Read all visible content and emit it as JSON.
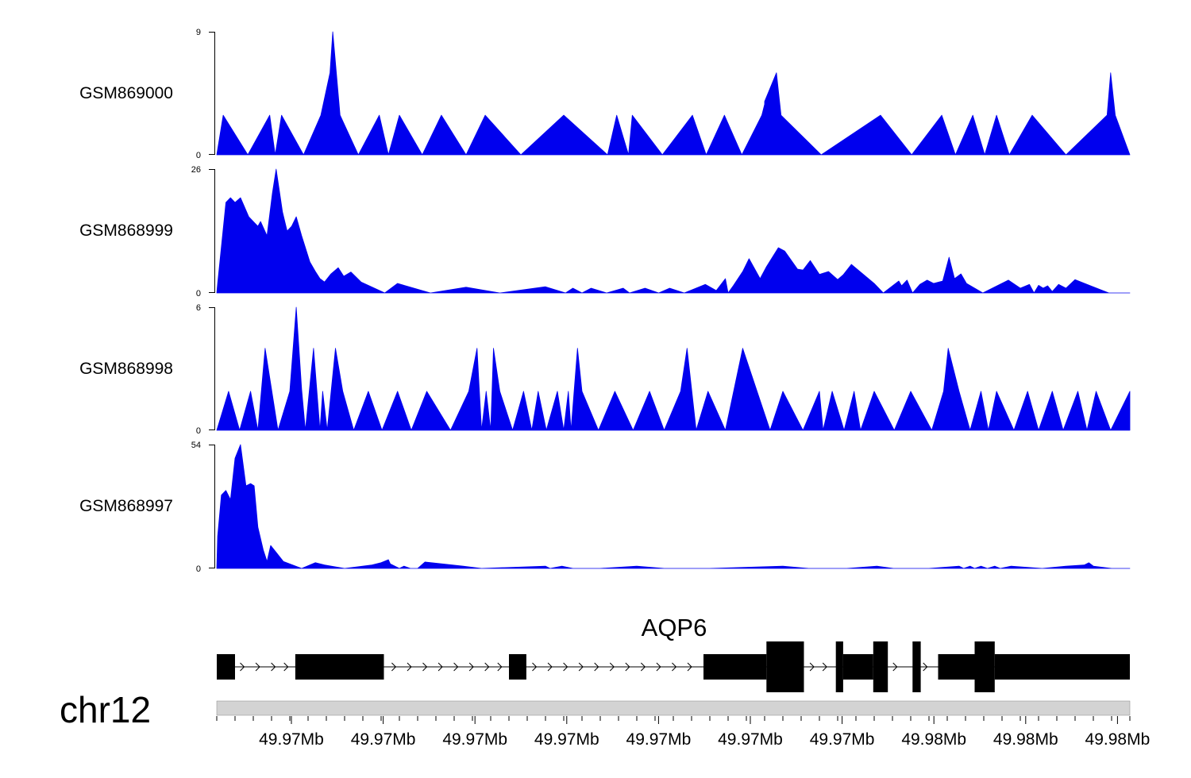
{
  "chart_data": {
    "type": "area",
    "chromosome": "chr12",
    "gene": "AQP6",
    "series_color": "#0000ee",
    "tracks": [
      {
        "name": "GSM869000",
        "ymax": 9,
        "ymin": 0,
        "points": [
          [
            0,
            0
          ],
          [
            0.007,
            2.9
          ],
          [
            0.034,
            0
          ],
          [
            0.058,
            2.9
          ],
          [
            0.064,
            0
          ],
          [
            0.071,
            2.9
          ],
          [
            0.095,
            0
          ],
          [
            0.114,
            2.9
          ],
          [
            0.124,
            6
          ],
          [
            0.127,
            9
          ],
          [
            0.135,
            2.9
          ],
          [
            0.155,
            0
          ],
          [
            0.178,
            2.9
          ],
          [
            0.188,
            0
          ],
          [
            0.2,
            2.9
          ],
          [
            0.225,
            0
          ],
          [
            0.246,
            2.9
          ],
          [
            0.273,
            0
          ],
          [
            0.294,
            2.9
          ],
          [
            0.333,
            0
          ],
          [
            0.38,
            2.9
          ],
          [
            0.428,
            0
          ],
          [
            0.438,
            2.9
          ],
          [
            0.451,
            0
          ],
          [
            0.455,
            2.9
          ],
          [
            0.488,
            0
          ],
          [
            0.521,
            2.9
          ],
          [
            0.536,
            0
          ],
          [
            0.556,
            2.9
          ],
          [
            0.575,
            0
          ],
          [
            0.597,
            2.9
          ],
          [
            0.6,
            3.7
          ],
          [
            0.6,
            3.9
          ],
          [
            0.613,
            6
          ],
          [
            0.618,
            2.9
          ],
          [
            0.662,
            0
          ],
          [
            0.727,
            2.9
          ],
          [
            0.761,
            0
          ],
          [
            0.794,
            2.9
          ],
          [
            0.809,
            0
          ],
          [
            0.828,
            2.9
          ],
          [
            0.841,
            0
          ],
          [
            0.854,
            2.9
          ],
          [
            0.868,
            0
          ],
          [
            0.893,
            2.9
          ],
          [
            0.93,
            0
          ],
          [
            0.975,
            2.9
          ],
          [
            0.979,
            6
          ],
          [
            0.984,
            2.9
          ],
          [
            1.0,
            0
          ]
        ]
      },
      {
        "name": "GSM868999",
        "ymax": 26,
        "ymin": 0,
        "points": [
          [
            0,
            0
          ],
          [
            0.001,
            2
          ],
          [
            0.01,
            19
          ],
          [
            0.015,
            20
          ],
          [
            0.02,
            19
          ],
          [
            0.026,
            20
          ],
          [
            0.035,
            16
          ],
          [
            0.04,
            15
          ],
          [
            0.045,
            14
          ],
          [
            0.048,
            15
          ],
          [
            0.055,
            12
          ],
          [
            0.061,
            21
          ],
          [
            0.065,
            26
          ],
          [
            0.072,
            17
          ],
          [
            0.077,
            13
          ],
          [
            0.082,
            14
          ],
          [
            0.087,
            16
          ],
          [
            0.093,
            12
          ],
          [
            0.102,
            6.5
          ],
          [
            0.108,
            4.5
          ],
          [
            0.113,
            3
          ],
          [
            0.118,
            2.3
          ],
          [
            0.125,
            4
          ],
          [
            0.133,
            5.3
          ],
          [
            0.139,
            3.5
          ],
          [
            0.147,
            4.4
          ],
          [
            0.158,
            2.3
          ],
          [
            0.184,
            0
          ],
          [
            0.198,
            2
          ],
          [
            0.234,
            0
          ],
          [
            0.273,
            1.2
          ],
          [
            0.31,
            0
          ],
          [
            0.36,
            1.3
          ],
          [
            0.382,
            0
          ],
          [
            0.39,
            1
          ],
          [
            0.4,
            0
          ],
          [
            0.41,
            1
          ],
          [
            0.427,
            0
          ],
          [
            0.445,
            1
          ],
          [
            0.452,
            0
          ],
          [
            0.469,
            1
          ],
          [
            0.484,
            0
          ],
          [
            0.496,
            1
          ],
          [
            0.512,
            0
          ],
          [
            0.535,
            1.8
          ],
          [
            0.547,
            0.5
          ],
          [
            0.557,
            3
          ],
          [
            0.56,
            0
          ],
          [
            0.566,
            1.6
          ],
          [
            0.576,
            4.5
          ],
          [
            0.583,
            7.2
          ],
          [
            0.595,
            3
          ],
          [
            0.602,
            5.5
          ],
          [
            0.615,
            9.5
          ],
          [
            0.622,
            8.8
          ],
          [
            0.636,
            5
          ],
          [
            0.642,
            4.8
          ],
          [
            0.65,
            6.8
          ],
          [
            0.66,
            3.9
          ],
          [
            0.67,
            4.5
          ],
          [
            0.68,
            2.8
          ],
          [
            0.686,
            3.8
          ],
          [
            0.695,
            6
          ],
          [
            0.72,
            2
          ],
          [
            0.73,
            0
          ],
          [
            0.747,
            2.5
          ],
          [
            0.75,
            1.5
          ],
          [
            0.756,
            2.7
          ],
          [
            0.762,
            0
          ],
          [
            0.77,
            1.8
          ],
          [
            0.778,
            2.7
          ],
          [
            0.785,
            2
          ],
          [
            0.795,
            2.5
          ],
          [
            0.802,
            7.5
          ],
          [
            0.808,
            3
          ],
          [
            0.815,
            4
          ],
          [
            0.821,
            2
          ],
          [
            0.839,
            0
          ],
          [
            0.867,
            2.7
          ],
          [
            0.88,
            1
          ],
          [
            0.89,
            1.8
          ],
          [
            0.895,
            0
          ],
          [
            0.9,
            1.6
          ],
          [
            0.905,
            1
          ],
          [
            0.91,
            1.5
          ],
          [
            0.915,
            0.3
          ],
          [
            0.922,
            1.8
          ],
          [
            0.93,
            1
          ],
          [
            0.94,
            2.8
          ],
          [
            0.957,
            1.5
          ],
          [
            0.977,
            0
          ],
          [
            1.0,
            0
          ]
        ]
      },
      {
        "name": "GSM868998",
        "ymax": 6,
        "ymin": 0,
        "points": [
          [
            0,
            0
          ],
          [
            0.013,
            1.9
          ],
          [
            0.025,
            0
          ],
          [
            0.037,
            1.9
          ],
          [
            0.045,
            0
          ],
          [
            0.053,
            4
          ],
          [
            0.067,
            0
          ],
          [
            0.08,
            1.9
          ],
          [
            0.087,
            6
          ],
          [
            0.093,
            2
          ],
          [
            0.097,
            0
          ],
          [
            0.106,
            4
          ],
          [
            0.113,
            0
          ],
          [
            0.116,
            1.9
          ],
          [
            0.121,
            0
          ],
          [
            0.13,
            4
          ],
          [
            0.138,
            1.9
          ],
          [
            0.15,
            0
          ],
          [
            0.166,
            1.9
          ],
          [
            0.181,
            0
          ],
          [
            0.198,
            1.9
          ],
          [
            0.213,
            0
          ],
          [
            0.23,
            1.9
          ],
          [
            0.256,
            0
          ],
          [
            0.276,
            1.9
          ],
          [
            0.285,
            4
          ],
          [
            0.29,
            0
          ],
          [
            0.295,
            1.9
          ],
          [
            0.3,
            0
          ],
          [
            0.303,
            4
          ],
          [
            0.31,
            1.9
          ],
          [
            0.324,
            0
          ],
          [
            0.336,
            1.9
          ],
          [
            0.345,
            0
          ],
          [
            0.352,
            1.9
          ],
          [
            0.361,
            0
          ],
          [
            0.373,
            1.9
          ],
          [
            0.38,
            0
          ],
          [
            0.385,
            1.9
          ],
          [
            0.388,
            0
          ],
          [
            0.395,
            4
          ],
          [
            0.4,
            1.9
          ],
          [
            0.418,
            0
          ],
          [
            0.436,
            1.9
          ],
          [
            0.456,
            0
          ],
          [
            0.474,
            1.9
          ],
          [
            0.49,
            0
          ],
          [
            0.508,
            1.9
          ],
          [
            0.515,
            4
          ],
          [
            0.525,
            0
          ],
          [
            0.538,
            1.9
          ],
          [
            0.557,
            0
          ],
          [
            0.576,
            4
          ],
          [
            0.606,
            0
          ],
          [
            0.62,
            1.9
          ],
          [
            0.642,
            0
          ],
          [
            0.66,
            1.9
          ],
          [
            0.664,
            0
          ],
          [
            0.674,
            1.9
          ],
          [
            0.687,
            0
          ],
          [
            0.698,
            1.9
          ],
          [
            0.705,
            0
          ],
          [
            0.72,
            1.9
          ],
          [
            0.742,
            0
          ],
          [
            0.76,
            1.9
          ],
          [
            0.783,
            0
          ],
          [
            0.796,
            1.9
          ],
          [
            0.801,
            4
          ],
          [
            0.813,
            1.9
          ],
          [
            0.825,
            0
          ],
          [
            0.837,
            1.9
          ],
          [
            0.845,
            0
          ],
          [
            0.854,
            1.9
          ],
          [
            0.873,
            0
          ],
          [
            0.888,
            1.9
          ],
          [
            0.9,
            0
          ],
          [
            0.915,
            1.9
          ],
          [
            0.927,
            0
          ],
          [
            0.943,
            1.9
          ],
          [
            0.953,
            0
          ],
          [
            0.963,
            1.9
          ],
          [
            0.979,
            0
          ],
          [
            1.0,
            1.9
          ],
          [
            1.0,
            0
          ]
        ]
      },
      {
        "name": "GSM868997",
        "ymax": 54,
        "ymin": 0,
        "points": [
          [
            0,
            0
          ],
          [
            0.001,
            14
          ],
          [
            0.005,
            32
          ],
          [
            0.01,
            34
          ],
          [
            0.015,
            30
          ],
          [
            0.02,
            48
          ],
          [
            0.026,
            54
          ],
          [
            0.032,
            36
          ],
          [
            0.037,
            37
          ],
          [
            0.041,
            36
          ],
          [
            0.045,
            18
          ],
          [
            0.051,
            8
          ],
          [
            0.055,
            3
          ],
          [
            0.059,
            10
          ],
          [
            0.065,
            7
          ],
          [
            0.073,
            3
          ],
          [
            0.093,
            0
          ],
          [
            0.108,
            2.5
          ],
          [
            0.118,
            1.5
          ],
          [
            0.14,
            0
          ],
          [
            0.17,
            1.5
          ],
          [
            0.18,
            2.5
          ],
          [
            0.188,
            3.8
          ],
          [
            0.19,
            2
          ],
          [
            0.2,
            0
          ],
          [
            0.205,
            1
          ],
          [
            0.212,
            0
          ],
          [
            0.22,
            0
          ],
          [
            0.228,
            2.8
          ],
          [
            0.27,
            1
          ],
          [
            0.29,
            0
          ],
          [
            0.36,
            1
          ],
          [
            0.365,
            0
          ],
          [
            0.378,
            1
          ],
          [
            0.39,
            0
          ],
          [
            0.42,
            0
          ],
          [
            0.46,
            1
          ],
          [
            0.49,
            0
          ],
          [
            0.54,
            0
          ],
          [
            0.62,
            1
          ],
          [
            0.648,
            0
          ],
          [
            0.69,
            0
          ],
          [
            0.723,
            1
          ],
          [
            0.741,
            0
          ],
          [
            0.78,
            0
          ],
          [
            0.813,
            1
          ],
          [
            0.818,
            0
          ],
          [
            0.825,
            1
          ],
          [
            0.83,
            0
          ],
          [
            0.837,
            1
          ],
          [
            0.844,
            0
          ],
          [
            0.852,
            1
          ],
          [
            0.858,
            0
          ],
          [
            0.87,
            1
          ],
          [
            0.904,
            0
          ],
          [
            0.93,
            1
          ],
          [
            0.95,
            1.5
          ],
          [
            0.955,
            2.5
          ],
          [
            0.96,
            1
          ],
          [
            0.98,
            0
          ],
          [
            1.0,
            0
          ]
        ]
      }
    ],
    "x_axis": {
      "tick_labels": [
        "49.97Mb",
        "49.97Mb",
        "49.97Mb",
        "49.97Mb",
        "49.97Mb",
        "49.97Mb",
        "49.97Mb",
        "49.98Mb",
        "49.98Mb",
        "49.98Mb"
      ]
    },
    "gene_model": {
      "exons": [
        [
          0.0,
          0.02,
          "thin"
        ],
        [
          0.086,
          0.183,
          "thin"
        ],
        [
          0.32,
          0.339,
          "thin"
        ],
        [
          0.533,
          0.602,
          "thin"
        ],
        [
          0.602,
          0.643,
          "thick"
        ],
        [
          0.678,
          0.686,
          "thick"
        ],
        [
          0.686,
          0.719,
          "thin"
        ],
        [
          0.719,
          0.735,
          "thick"
        ],
        [
          0.762,
          0.771,
          "thick"
        ],
        [
          0.79,
          0.83,
          "thin"
        ],
        [
          0.83,
          0.852,
          "thick"
        ],
        [
          0.852,
          1.0,
          "thin"
        ]
      ],
      "arrows": [
        0.03,
        0.047,
        0.064,
        0.078,
        0.196,
        0.213,
        0.23,
        0.247,
        0.264,
        0.281,
        0.298,
        0.312,
        0.35,
        0.367,
        0.384,
        0.401,
        0.418,
        0.435,
        0.452,
        0.469,
        0.486,
        0.503,
        0.52,
        0.654,
        0.668,
        0.745,
        0.778
      ]
    }
  }
}
